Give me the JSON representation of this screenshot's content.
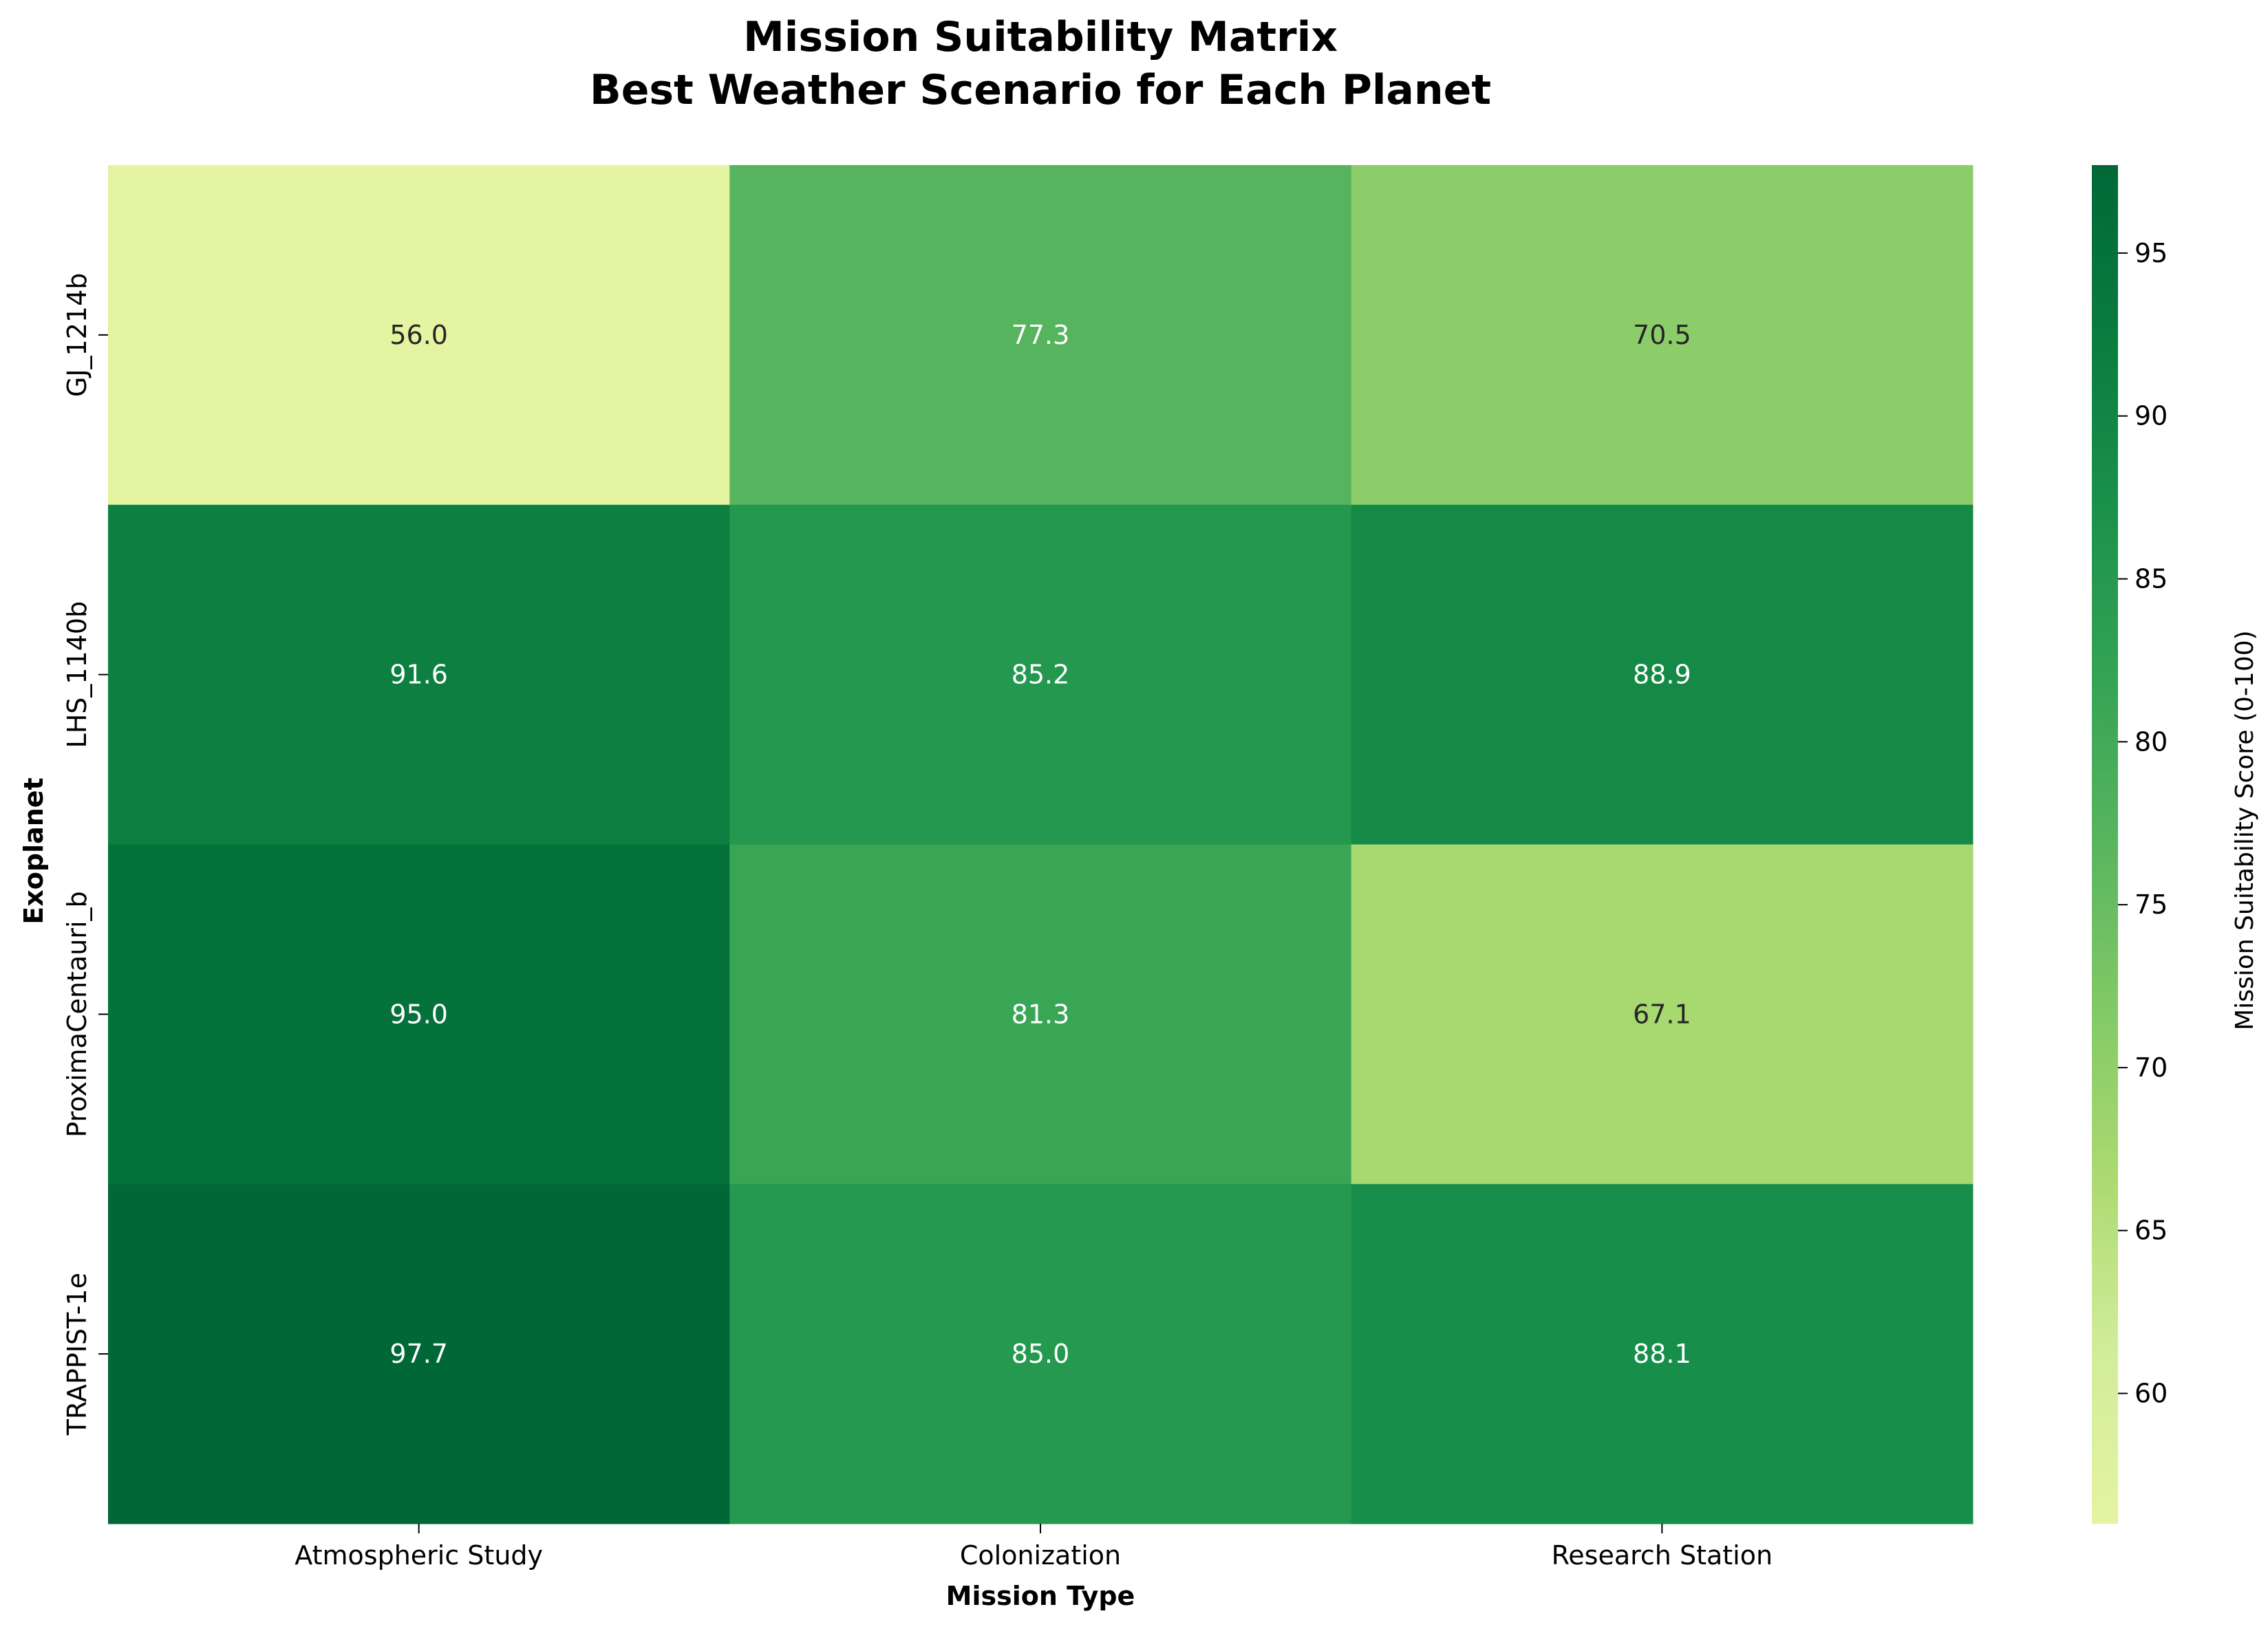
{
  "chart_data": {
    "type": "heatmap",
    "title": "Mission Suitability Matrix\nBest Weather Scenario for Each Planet",
    "title_lines": [
      "Mission Suitability Matrix",
      "Best Weather Scenario for Each Planet"
    ],
    "xlabel": "Mission Type",
    "ylabel": "Exoplanet",
    "x_categories": [
      "Atmospheric Study",
      "Colonization",
      "Research Station"
    ],
    "y_categories": [
      "GJ_1214b",
      "LHS_1140b",
      "ProximaCentauri_b",
      "TRAPPIST-1e"
    ],
    "values": [
      [
        56.0,
        77.3,
        70.5
      ],
      [
        91.6,
        85.2,
        88.9
      ],
      [
        95.0,
        81.3,
        67.1
      ],
      [
        97.7,
        85.0,
        88.1
      ]
    ],
    "value_format": "0.0",
    "colormap": "YlGn",
    "colorbar": {
      "label": "Mission Suitability Score (0-100)",
      "vmin": 56.0,
      "vmax": 97.7,
      "ticks": [
        60,
        65,
        70,
        75,
        80,
        85,
        90,
        95
      ]
    },
    "legend": "none",
    "grid": false
  },
  "colors": {
    "low": "#e4f4a0",
    "high": "#006837"
  }
}
